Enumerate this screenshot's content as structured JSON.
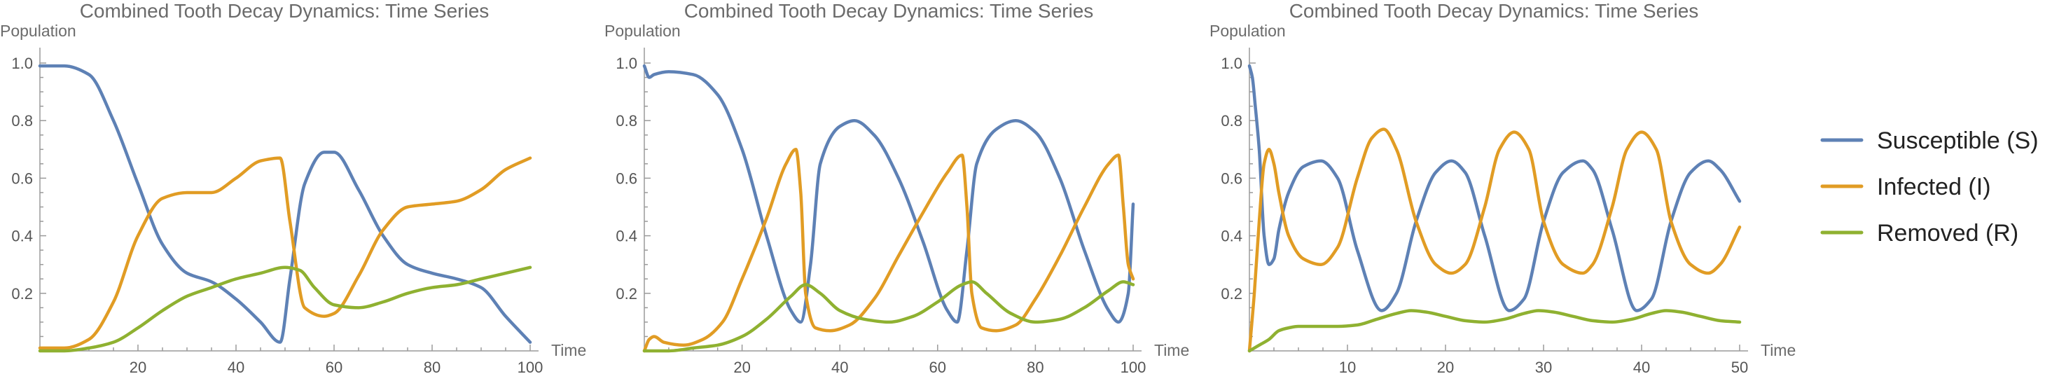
{
  "legend": [
    {
      "label": "Susceptible (S)",
      "color": "#5e81b5"
    },
    {
      "label": "Infected (I)",
      "color": "#e19c24"
    },
    {
      "label": "Removed (R)",
      "color": "#8fb131"
    }
  ],
  "chart_data": [
    {
      "type": "line",
      "title": "Combined Tooth Decay Dynamics: Time Series",
      "xlabel": "Time",
      "ylabel": "Population",
      "xlim": [
        0,
        100
      ],
      "ylim": [
        0,
        1.0
      ],
      "xticks": [
        20,
        40,
        60,
        80,
        100
      ],
      "yticks": [
        0.2,
        0.4,
        0.6,
        0.8,
        1.0
      ],
      "series": [
        {
          "name": "Susceptible (S)",
          "color": "#5e81b5",
          "x": [
            0,
            5,
            10,
            15,
            20,
            25,
            30,
            35,
            40,
            45,
            49,
            51,
            54,
            58,
            60,
            65,
            70,
            75,
            80,
            85,
            90,
            95,
            100
          ],
          "y": [
            0.99,
            0.99,
            0.96,
            0.8,
            0.58,
            0.37,
            0.27,
            0.24,
            0.18,
            0.1,
            0.03,
            0.25,
            0.58,
            0.69,
            0.69,
            0.56,
            0.4,
            0.3,
            0.27,
            0.25,
            0.22,
            0.12,
            0.03
          ]
        },
        {
          "name": "Infected (I)",
          "color": "#e19c24",
          "x": [
            0,
            5,
            10,
            15,
            20,
            25,
            30,
            35,
            40,
            45,
            49,
            51,
            54,
            58,
            60,
            65,
            70,
            75,
            80,
            85,
            90,
            95,
            100
          ],
          "y": [
            0.01,
            0.01,
            0.04,
            0.17,
            0.4,
            0.53,
            0.55,
            0.55,
            0.6,
            0.66,
            0.67,
            0.45,
            0.15,
            0.12,
            0.13,
            0.26,
            0.42,
            0.5,
            0.51,
            0.52,
            0.56,
            0.63,
            0.67
          ]
        },
        {
          "name": "Removed (R)",
          "color": "#8fb131",
          "x": [
            0,
            5,
            10,
            15,
            20,
            25,
            30,
            35,
            40,
            45,
            50,
            53,
            56,
            60,
            65,
            70,
            75,
            80,
            85,
            90,
            95,
            100
          ],
          "y": [
            0.0,
            0.0,
            0.01,
            0.03,
            0.08,
            0.14,
            0.19,
            0.22,
            0.25,
            0.27,
            0.29,
            0.28,
            0.22,
            0.16,
            0.15,
            0.17,
            0.2,
            0.22,
            0.23,
            0.25,
            0.27,
            0.29
          ]
        }
      ]
    },
    {
      "type": "line",
      "title": "Combined Tooth Decay Dynamics: Time Series",
      "xlabel": "Time",
      "ylabel": "Population",
      "xlim": [
        0,
        100
      ],
      "ylim": [
        0,
        1.0
      ],
      "xticks": [
        20,
        40,
        60,
        80,
        100
      ],
      "yticks": [
        0.2,
        0.4,
        0.6,
        0.8,
        1.0
      ],
      "series": [
        {
          "name": "Susceptible (S)",
          "color": "#5e81b5",
          "x": [
            0,
            1,
            2,
            5,
            10,
            15,
            20,
            25,
            30,
            32,
            34,
            36,
            40,
            43,
            47,
            52,
            57,
            62,
            64,
            66,
            68,
            72,
            76,
            80,
            85,
            90,
            95,
            97,
            99,
            100
          ],
          "y": [
            0.99,
            0.95,
            0.96,
            0.97,
            0.96,
            0.89,
            0.7,
            0.4,
            0.14,
            0.1,
            0.3,
            0.65,
            0.78,
            0.8,
            0.75,
            0.6,
            0.38,
            0.14,
            0.1,
            0.35,
            0.65,
            0.77,
            0.8,
            0.76,
            0.6,
            0.35,
            0.14,
            0.1,
            0.2,
            0.51
          ]
        },
        {
          "name": "Infected (I)",
          "color": "#e19c24",
          "x": [
            0,
            1,
            2,
            4,
            8,
            12,
            16,
            20,
            25,
            29,
            31,
            32,
            33,
            35,
            38,
            42,
            47,
            52,
            57,
            62,
            65,
            66,
            67,
            69,
            72,
            76,
            80,
            85,
            90,
            95,
            97,
            98,
            99,
            100
          ],
          "y": [
            0.0,
            0.04,
            0.05,
            0.03,
            0.02,
            0.04,
            0.1,
            0.25,
            0.46,
            0.65,
            0.7,
            0.55,
            0.2,
            0.08,
            0.07,
            0.09,
            0.18,
            0.33,
            0.48,
            0.62,
            0.68,
            0.5,
            0.2,
            0.08,
            0.07,
            0.09,
            0.18,
            0.33,
            0.5,
            0.65,
            0.68,
            0.5,
            0.3,
            0.25
          ]
        },
        {
          "name": "Removed (R)",
          "color": "#8fb131",
          "x": [
            0,
            5,
            10,
            15,
            20,
            25,
            30,
            33,
            36,
            40,
            45,
            50,
            55,
            60,
            65,
            67,
            70,
            75,
            80,
            85,
            90,
            95,
            98,
            100
          ],
          "y": [
            0.0,
            0.0,
            0.01,
            0.02,
            0.05,
            0.11,
            0.19,
            0.23,
            0.2,
            0.14,
            0.11,
            0.1,
            0.12,
            0.17,
            0.23,
            0.24,
            0.2,
            0.13,
            0.1,
            0.11,
            0.15,
            0.21,
            0.24,
            0.23
          ]
        }
      ]
    },
    {
      "type": "line",
      "title": "Combined Tooth Decay Dynamics: Time Series",
      "xlabel": "Time",
      "ylabel": "Population",
      "xlim": [
        0,
        50
      ],
      "ylim": [
        0,
        1.0
      ],
      "xticks": [
        10,
        20,
        30,
        40,
        50
      ],
      "yticks": [
        0.2,
        0.4,
        0.6,
        0.8,
        1.0
      ],
      "series": [
        {
          "name": "Susceptible (S)",
          "color": "#5e81b5",
          "x": [
            0,
            0.3,
            0.6,
            1,
            1.5,
            2,
            2.5,
            3,
            4,
            5.5,
            7.3,
            9,
            11,
            13.5,
            15,
            17,
            19,
            20.6,
            22,
            24,
            26.5,
            28,
            30,
            32,
            34,
            35,
            37,
            39.5,
            41,
            43,
            45,
            46.8,
            48,
            50
          ],
          "y": [
            0.99,
            0.95,
            0.85,
            0.7,
            0.4,
            0.3,
            0.32,
            0.42,
            0.55,
            0.64,
            0.66,
            0.6,
            0.35,
            0.14,
            0.2,
            0.45,
            0.62,
            0.66,
            0.62,
            0.4,
            0.14,
            0.18,
            0.45,
            0.62,
            0.66,
            0.63,
            0.42,
            0.14,
            0.18,
            0.45,
            0.62,
            0.66,
            0.63,
            0.52
          ]
        },
        {
          "name": "Infected (I)",
          "color": "#e19c24",
          "x": [
            0,
            0.5,
            1,
            1.5,
            2,
            2.5,
            3,
            4,
            5.5,
            7.3,
            9,
            11,
            12.5,
            13.7,
            15,
            17,
            19,
            20.6,
            22,
            24,
            25.5,
            27,
            28.5,
            30,
            32,
            34,
            35,
            37,
            38.5,
            40,
            41.5,
            43,
            45,
            46.8,
            48,
            50
          ],
          "y": [
            0.0,
            0.2,
            0.45,
            0.65,
            0.7,
            0.65,
            0.55,
            0.4,
            0.32,
            0.3,
            0.36,
            0.6,
            0.74,
            0.77,
            0.7,
            0.45,
            0.3,
            0.27,
            0.3,
            0.5,
            0.7,
            0.76,
            0.7,
            0.45,
            0.3,
            0.27,
            0.3,
            0.5,
            0.7,
            0.76,
            0.7,
            0.45,
            0.3,
            0.27,
            0.3,
            0.43
          ]
        },
        {
          "name": "Removed (R)",
          "color": "#8fb131",
          "x": [
            0,
            0.5,
            1,
            2,
            3,
            4,
            5,
            7,
            9,
            11,
            13,
            15,
            16.5,
            18,
            20,
            22,
            24,
            26,
            28,
            29.5,
            31,
            33,
            35,
            37,
            39,
            41,
            42.5,
            44,
            46,
            48,
            50
          ],
          "y": [
            0.0,
            0.01,
            0.02,
            0.04,
            0.07,
            0.08,
            0.085,
            0.085,
            0.085,
            0.09,
            0.11,
            0.13,
            0.14,
            0.135,
            0.12,
            0.105,
            0.1,
            0.11,
            0.13,
            0.14,
            0.135,
            0.12,
            0.105,
            0.1,
            0.11,
            0.13,
            0.14,
            0.135,
            0.12,
            0.105,
            0.1
          ]
        }
      ]
    }
  ]
}
